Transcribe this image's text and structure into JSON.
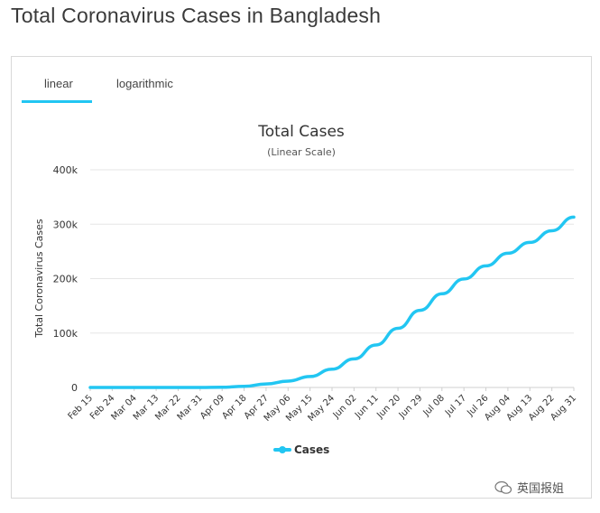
{
  "page": {
    "title": "Total Coronavirus Cases in Bangladesh"
  },
  "tabs": [
    {
      "label": "linear",
      "active": true
    },
    {
      "label": "logarithmic",
      "active": false
    }
  ],
  "watermark": {
    "text": "英国报姐"
  },
  "colors": {
    "accent": "#22c6f2",
    "line": "#22c6f2",
    "grid": "#e6e6e6",
    "text": "#333333"
  },
  "chart_data": {
    "type": "line",
    "title": "Total Cases",
    "subtitle": "(Linear Scale)",
    "ylabel": "Total Coronavirus Cases",
    "xlabel": "",
    "ylim": [
      0,
      400000
    ],
    "y_ticks": [
      0,
      100000,
      200000,
      300000,
      400000
    ],
    "y_tick_labels": [
      "0",
      "100k",
      "200k",
      "300k",
      "400k"
    ],
    "x_tick_labels": [
      "Feb 15",
      "Feb 24",
      "Mar 04",
      "Mar 13",
      "Mar 22",
      "Mar 31",
      "Apr 09",
      "Apr 18",
      "Apr 27",
      "May 06",
      "May 15",
      "May 24",
      "Jun 02",
      "Jun 11",
      "Jun 20",
      "Jun 29",
      "Jul 08",
      "Jul 17",
      "Jul 26",
      "Aug 04",
      "Aug 13",
      "Aug 22",
      "Aug 31"
    ],
    "grid": true,
    "legend_position": "bottom",
    "series": [
      {
        "name": "Cases",
        "x": [
          "Feb 15",
          "Feb 24",
          "Mar 04",
          "Mar 13",
          "Mar 22",
          "Mar 31",
          "Apr 09",
          "Apr 18",
          "Apr 27",
          "May 06",
          "May 15",
          "May 24",
          "Jun 02",
          "Jun 11",
          "Jun 20",
          "Jun 29",
          "Jul 08",
          "Jul 17",
          "Jul 26",
          "Aug 04",
          "Aug 13",
          "Aug 22",
          "Aug 31"
        ],
        "values": [
          0,
          0,
          0,
          3,
          27,
          51,
          330,
          2144,
          6462,
          11719,
          20065,
          33610,
          52445,
          78052,
          108775,
          141801,
          172134,
          199357,
          223453,
          246674,
          266498,
          287959,
          312996
        ]
      }
    ]
  }
}
